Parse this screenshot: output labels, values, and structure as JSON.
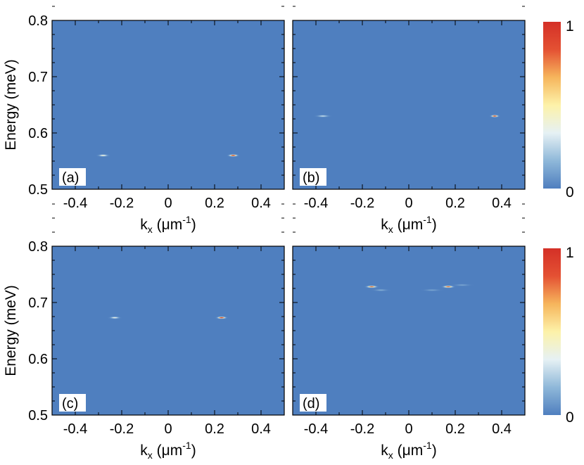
{
  "chart_data": [
    {
      "type": "heatmap",
      "panel_label": "(a)",
      "xlabel": "k",
      "xlabel_sub": "x",
      "xlabel_unit_open": " (",
      "xlabel_mu": "μ",
      "xlabel_unit_base": "m",
      "xlabel_unit_exp": "-1",
      "xlabel_unit_close": ")",
      "ylabel": "Energy (meV)",
      "xlim": [
        -0.5,
        0.5
      ],
      "ylim": [
        0.5,
        0.8
      ],
      "xticks": [
        "-0.4",
        "-0.2",
        "0",
        "0.2",
        "0.4"
      ],
      "xtick_values": [
        -0.4,
        -0.2,
        0,
        0.2,
        0.4
      ],
      "yticks": [
        "0.5",
        "0.6",
        "0.7",
        "0.8"
      ],
      "ytick_values": [
        0.5,
        0.6,
        0.7,
        0.8
      ],
      "spots": [
        {
          "kx": -0.28,
          "energy": 0.56,
          "intensity": 0.45,
          "kx_width": 0.035,
          "e_width": 0.0022
        },
        {
          "kx": 0.28,
          "energy": 0.56,
          "intensity": 1.0,
          "kx_width": 0.03,
          "e_width": 0.0022
        }
      ]
    },
    {
      "type": "heatmap",
      "panel_label": "(b)",
      "xlabel": "k",
      "xlabel_sub": "x",
      "xlabel_unit_open": " (",
      "xlabel_mu": "μ",
      "xlabel_unit_base": "m",
      "xlabel_unit_exp": "-1",
      "xlabel_unit_close": ")",
      "ylabel": "",
      "xlim": [
        -0.5,
        0.5
      ],
      "ylim": [
        0.5,
        0.8
      ],
      "xticks": [
        "-0.4",
        "-0.2",
        "0",
        "0.2",
        "0.4"
      ],
      "xtick_values": [
        -0.4,
        -0.2,
        0,
        0.2,
        0.4
      ],
      "yticks": [],
      "ytick_values": [
        0.5,
        0.6,
        0.7,
        0.8
      ],
      "spots": [
        {
          "kx": -0.37,
          "energy": 0.63,
          "intensity": 0.3,
          "kx_width": 0.045,
          "e_width": 0.0022
        },
        {
          "kx": 0.37,
          "energy": 0.63,
          "intensity": 1.0,
          "kx_width": 0.025,
          "e_width": 0.0025
        }
      ]
    },
    {
      "type": "heatmap",
      "panel_label": "(c)",
      "xlabel": "k",
      "xlabel_sub": "x",
      "xlabel_unit_open": " (",
      "xlabel_mu": "μ",
      "xlabel_unit_base": "m",
      "xlabel_unit_exp": "-1",
      "xlabel_unit_close": ")",
      "ylabel": "Energy (meV)",
      "xlim": [
        -0.5,
        0.5
      ],
      "ylim": [
        0.5,
        0.8
      ],
      "xticks": [
        "-0.4",
        "-0.2",
        "0",
        "0.2",
        "0.4"
      ],
      "xtick_values": [
        -0.4,
        -0.2,
        0,
        0.2,
        0.4
      ],
      "yticks": [
        "0.5",
        "0.6",
        "0.7",
        "0.8"
      ],
      "ytick_values": [
        0.5,
        0.6,
        0.7,
        0.8
      ],
      "spots": [
        {
          "kx": -0.23,
          "energy": 0.673,
          "intensity": 0.4,
          "kx_width": 0.035,
          "e_width": 0.0022
        },
        {
          "kx": 0.23,
          "energy": 0.673,
          "intensity": 1.0,
          "kx_width": 0.03,
          "e_width": 0.0024
        }
      ]
    },
    {
      "type": "heatmap",
      "panel_label": "(d)",
      "xlabel": "k",
      "xlabel_sub": "x",
      "xlabel_unit_open": " (",
      "xlabel_mu": "μ",
      "xlabel_unit_base": "m",
      "xlabel_unit_exp": "-1",
      "xlabel_unit_close": ")",
      "ylabel": "",
      "xlim": [
        -0.5,
        0.5
      ],
      "ylim": [
        0.5,
        0.8
      ],
      "xticks": [
        "-0.4",
        "-0.2",
        "0",
        "0.2",
        "0.4"
      ],
      "xtick_values": [
        -0.4,
        -0.2,
        0,
        0.2,
        0.4
      ],
      "yticks": [],
      "ytick_values": [
        0.5,
        0.6,
        0.7,
        0.8
      ],
      "spots": [
        {
          "kx": -0.16,
          "energy": 0.728,
          "intensity": 0.85,
          "kx_width": 0.035,
          "e_width": 0.0025
        },
        {
          "kx": 0.17,
          "energy": 0.728,
          "intensity": 0.85,
          "kx_width": 0.035,
          "e_width": 0.0025
        },
        {
          "kx": -0.12,
          "energy": 0.722,
          "intensity": 0.15,
          "kx_width": 0.05,
          "e_width": 0.0018
        },
        {
          "kx": 0.1,
          "energy": 0.722,
          "intensity": 0.12,
          "kx_width": 0.06,
          "e_width": 0.0018
        },
        {
          "kx": 0.23,
          "energy": 0.731,
          "intensity": 0.12,
          "kx_width": 0.06,
          "e_width": 0.0018
        }
      ]
    }
  ],
  "colorbars": [
    {
      "max_label": "1",
      "min_label": "0"
    },
    {
      "max_label": "1",
      "min_label": "0"
    }
  ],
  "colors": {
    "background": "#4f7fbf",
    "colormap": [
      "#4f7fbf",
      "#8fb8d9",
      "#e6f1f4",
      "#fdf2a9",
      "#f6b55c",
      "#e45133",
      "#d43027"
    ]
  }
}
